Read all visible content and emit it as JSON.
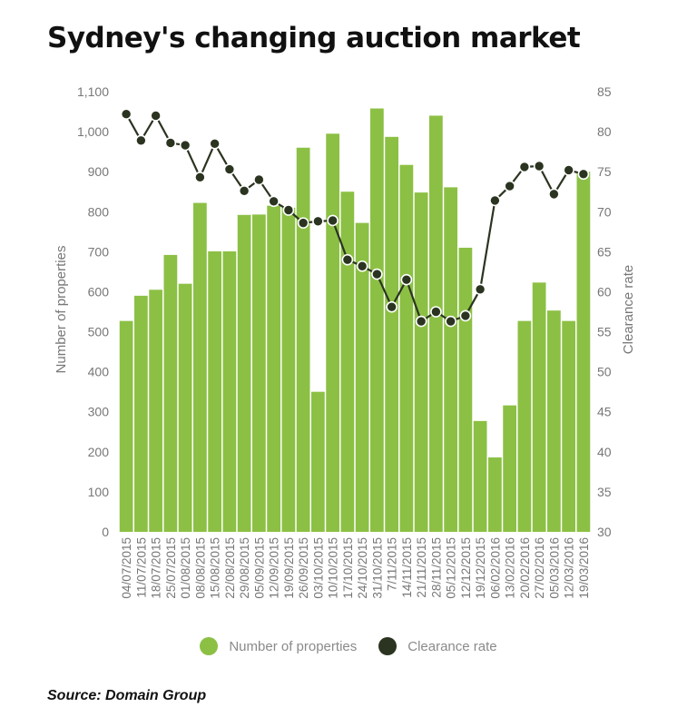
{
  "chart_data": {
    "type": "bar",
    "title": "Sydney's changing auction market",
    "source": "Source: Domain Group",
    "ylabel": "Number of properties",
    "y2label": "Clearance rate",
    "ylim": [
      0,
      1100
    ],
    "y2lim": [
      30,
      85
    ],
    "yticks": [
      0,
      100,
      200,
      300,
      400,
      500,
      600,
      700,
      800,
      900,
      1000,
      1100
    ],
    "ytick_labels": [
      "0",
      "100",
      "200",
      "300",
      "400",
      "500",
      "600",
      "700",
      "800",
      "900",
      "1,000",
      "1,100"
    ],
    "y2ticks": [
      30,
      35,
      40,
      45,
      50,
      55,
      60,
      65,
      70,
      75,
      80,
      85
    ],
    "grid": false,
    "legend_position": "bottom",
    "colors": {
      "bar": "#8cc044",
      "line": "#2b3420"
    },
    "categories": [
      "04/07/2015",
      "11/07/2015",
      "18/07/2015",
      "25/07/2015",
      "01/08/2015",
      "08/08/2015",
      "15/08/2015",
      "22/08/2015",
      "29/08/2015",
      "05/09/2015",
      "12/09/2015",
      "19/09/2015",
      "26/09/2015",
      "03/10/2015",
      "10/10/2015",
      "17/10/2015",
      "24/10/2015",
      "31/10/2015",
      "7/11/2015",
      "14/11/2015",
      "21/11/2015",
      "28/11/2015",
      "05/12/2015",
      "12/12/2015",
      "19/12/2015",
      "06/02/2016",
      "13/02/2016",
      "20/02/2016",
      "27/02/2016",
      "05/03/2016",
      "12/03/2016",
      "19/03/2016"
    ],
    "series": [
      {
        "name": "Number of properties",
        "type": "bar",
        "axis": "left",
        "values": [
          527,
          590,
          605,
          692,
          620,
          822,
          701,
          701,
          792,
          793,
          815,
          810,
          960,
          350,
          995,
          850,
          772,
          1058,
          987,
          917,
          848,
          1040,
          861,
          710,
          277,
          186,
          316,
          527,
          623,
          553,
          527,
          900
        ]
      },
      {
        "name": "Clearance rate",
        "type": "line",
        "axis": "right",
        "values": [
          82.2,
          78.9,
          82.0,
          78.6,
          78.3,
          74.3,
          78.5,
          75.3,
          72.6,
          74.0,
          71.3,
          70.2,
          68.6,
          68.8,
          68.9,
          64.0,
          63.2,
          62.2,
          58.1,
          61.5,
          56.3,
          57.5,
          56.3,
          57.0,
          60.3,
          71.4,
          73.2,
          75.6,
          75.7,
          72.2,
          75.2,
          74.7
        ]
      }
    ]
  }
}
